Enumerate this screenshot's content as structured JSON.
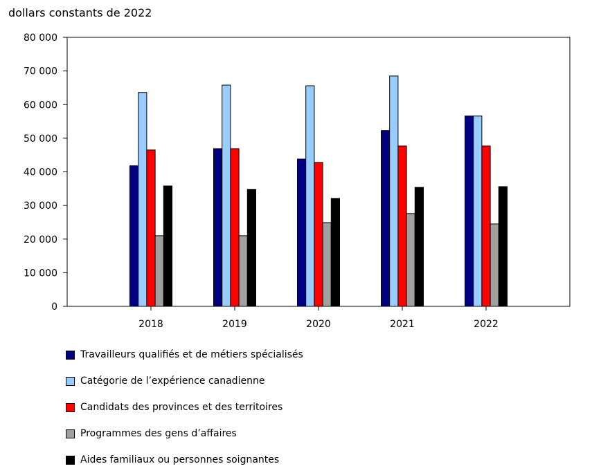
{
  "chart_data": {
    "type": "bar",
    "ylabel": "dollars constants de 2022",
    "ylim": [
      0,
      80000
    ],
    "yticks": [
      0,
      10000,
      20000,
      30000,
      40000,
      50000,
      60000,
      70000,
      80000
    ],
    "ytick_labels": [
      "0",
      "10 000",
      "20 000",
      "30 000",
      "40 000",
      "50 000",
      "60 000",
      "70 000",
      "80 000"
    ],
    "categories": [
      "2018",
      "2019",
      "2020",
      "2021",
      "2022"
    ],
    "grid": false,
    "legend_placement": "bottom",
    "series": [
      {
        "name": "Travailleurs qualifiés et de métiers spécialisés",
        "color": "#000080",
        "values": [
          41800,
          46900,
          43800,
          52300,
          56600
        ]
      },
      {
        "name": "Catégorie de l’expérience canadienne",
        "color": "#99ccff",
        "values": [
          63600,
          65800,
          65600,
          68500,
          56600
        ]
      },
      {
        "name": "Candidats des provinces et des territoires",
        "color": "#ff0000",
        "values": [
          46500,
          46900,
          42800,
          47700,
          47700
        ]
      },
      {
        "name": "Programmes des gens d’affaires",
        "color": "#a0a0a0",
        "values": [
          21000,
          21000,
          24900,
          27600,
          24500
        ]
      },
      {
        "name": "Aides familiaux ou personnes soignantes",
        "color": "#000000",
        "values": [
          35800,
          34800,
          32100,
          35400,
          35600
        ]
      }
    ]
  }
}
